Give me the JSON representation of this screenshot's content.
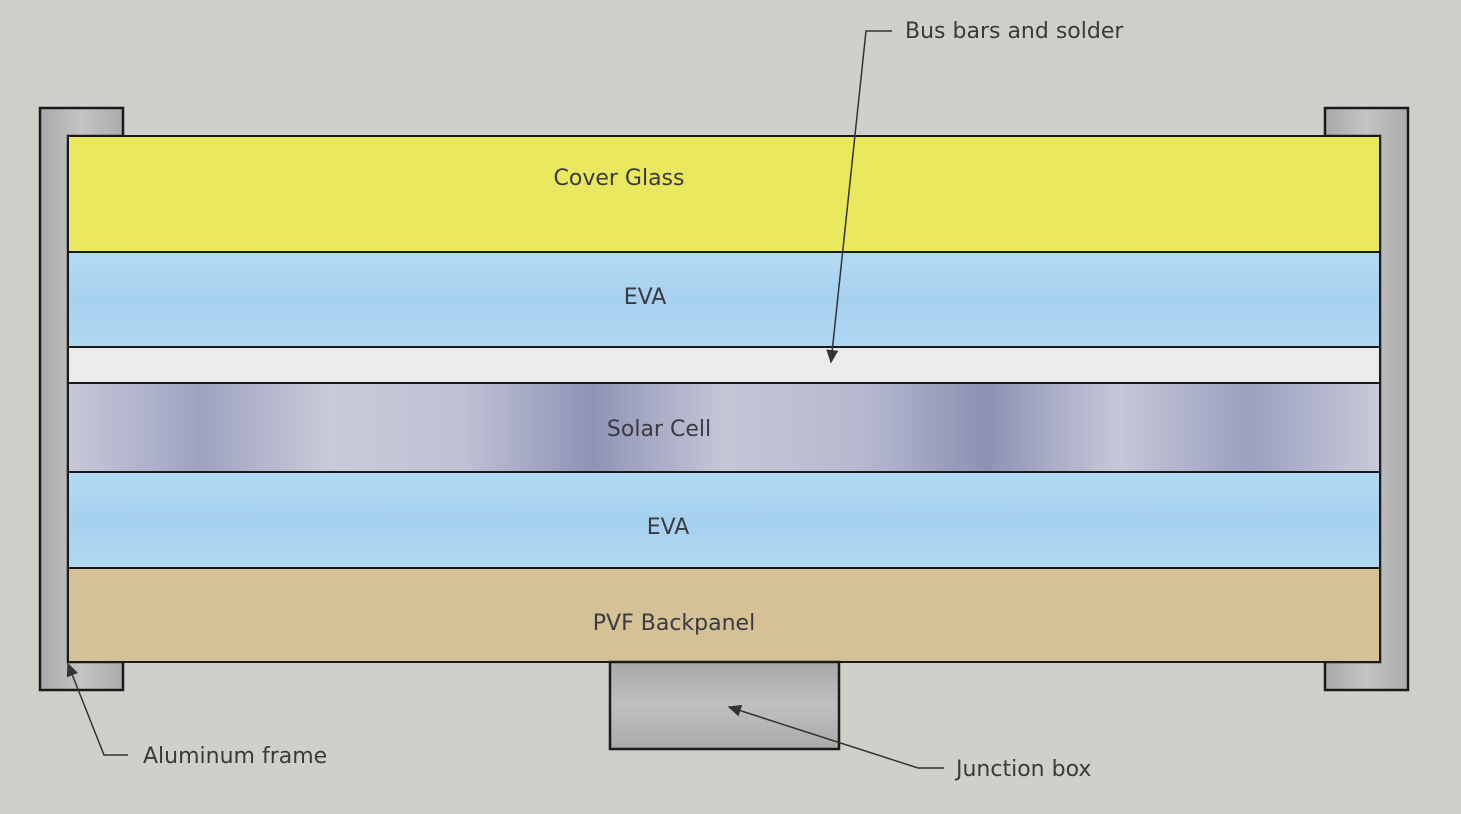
{
  "diagram": {
    "layers": [
      {
        "id": "cover-glass",
        "label": "Cover Glass",
        "color": "#e9e85f"
      },
      {
        "id": "eva-top",
        "label": "EVA",
        "color": "#a9d3ef"
      },
      {
        "id": "bus-bars",
        "label": "",
        "color": "#ecebee"
      },
      {
        "id": "solar-cell",
        "label": "Solar Cell",
        "color": "#b4b8cf"
      },
      {
        "id": "eva-bottom",
        "label": "EVA",
        "color": "#a9d3ef"
      },
      {
        "id": "pvf-backpanel",
        "label": "PVF Backpanel",
        "color": "#d5c196"
      }
    ],
    "callouts": {
      "bus_bars": "Bus bars and solder",
      "aluminum_frame": "Aluminum frame",
      "junction_box": "Junction box"
    },
    "colors": {
      "background": "#cfd0c9",
      "frame": "#b9b9b9",
      "junction_box": "#b5b5b5",
      "outline": "#1a1a1a"
    }
  }
}
